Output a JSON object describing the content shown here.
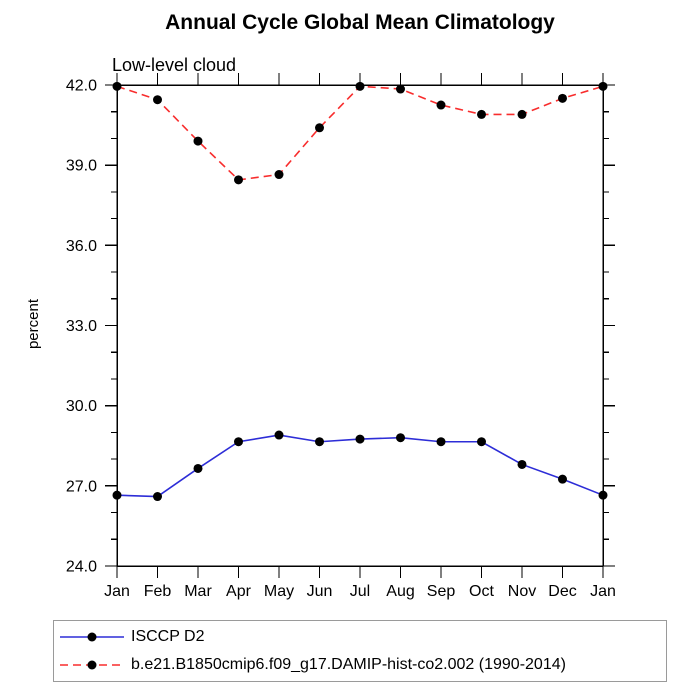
{
  "chart_data": {
    "type": "line",
    "title": "Annual Cycle Global Mean Climatology",
    "subtitle": "Low-level cloud",
    "xlabel": "",
    "ylabel": "percent",
    "categories": [
      "Jan",
      "Feb",
      "Mar",
      "Apr",
      "May",
      "Jun",
      "Jul",
      "Aug",
      "Sep",
      "Oct",
      "Nov",
      "Dec",
      "Jan"
    ],
    "series": [
      {
        "name": "ISCCP D2",
        "color": "#2d2dd7",
        "line_style": "solid",
        "marker": "black-circle",
        "values": [
          26.65,
          26.6,
          27.65,
          28.65,
          28.9,
          28.65,
          28.75,
          28.8,
          28.65,
          28.65,
          27.8,
          27.25,
          26.65
        ]
      },
      {
        "name": "b.e21.B1850cmip6.f09_g17.DAMIP-hist-co2.002 (1990-2014)",
        "color": "#f82d2d",
        "line_style": "dashed",
        "marker": "black-circle",
        "values": [
          41.95,
          41.45,
          39.9,
          38.45,
          38.65,
          40.4,
          41.95,
          41.85,
          41.25,
          40.9,
          40.9,
          41.5,
          41.95
        ]
      }
    ],
    "ylim": [
      24.0,
      42.0
    ],
    "ytick_major_interval": 3.0,
    "ytick_minor_interval": 1.0,
    "ytick_labels": [
      "24.0",
      "27.0",
      "30.0",
      "33.0",
      "36.0",
      "39.0",
      "42.0"
    ],
    "grid": false,
    "legend_position": "bottom-left",
    "axis_color": "#000000",
    "marker_color": "#000000"
  }
}
